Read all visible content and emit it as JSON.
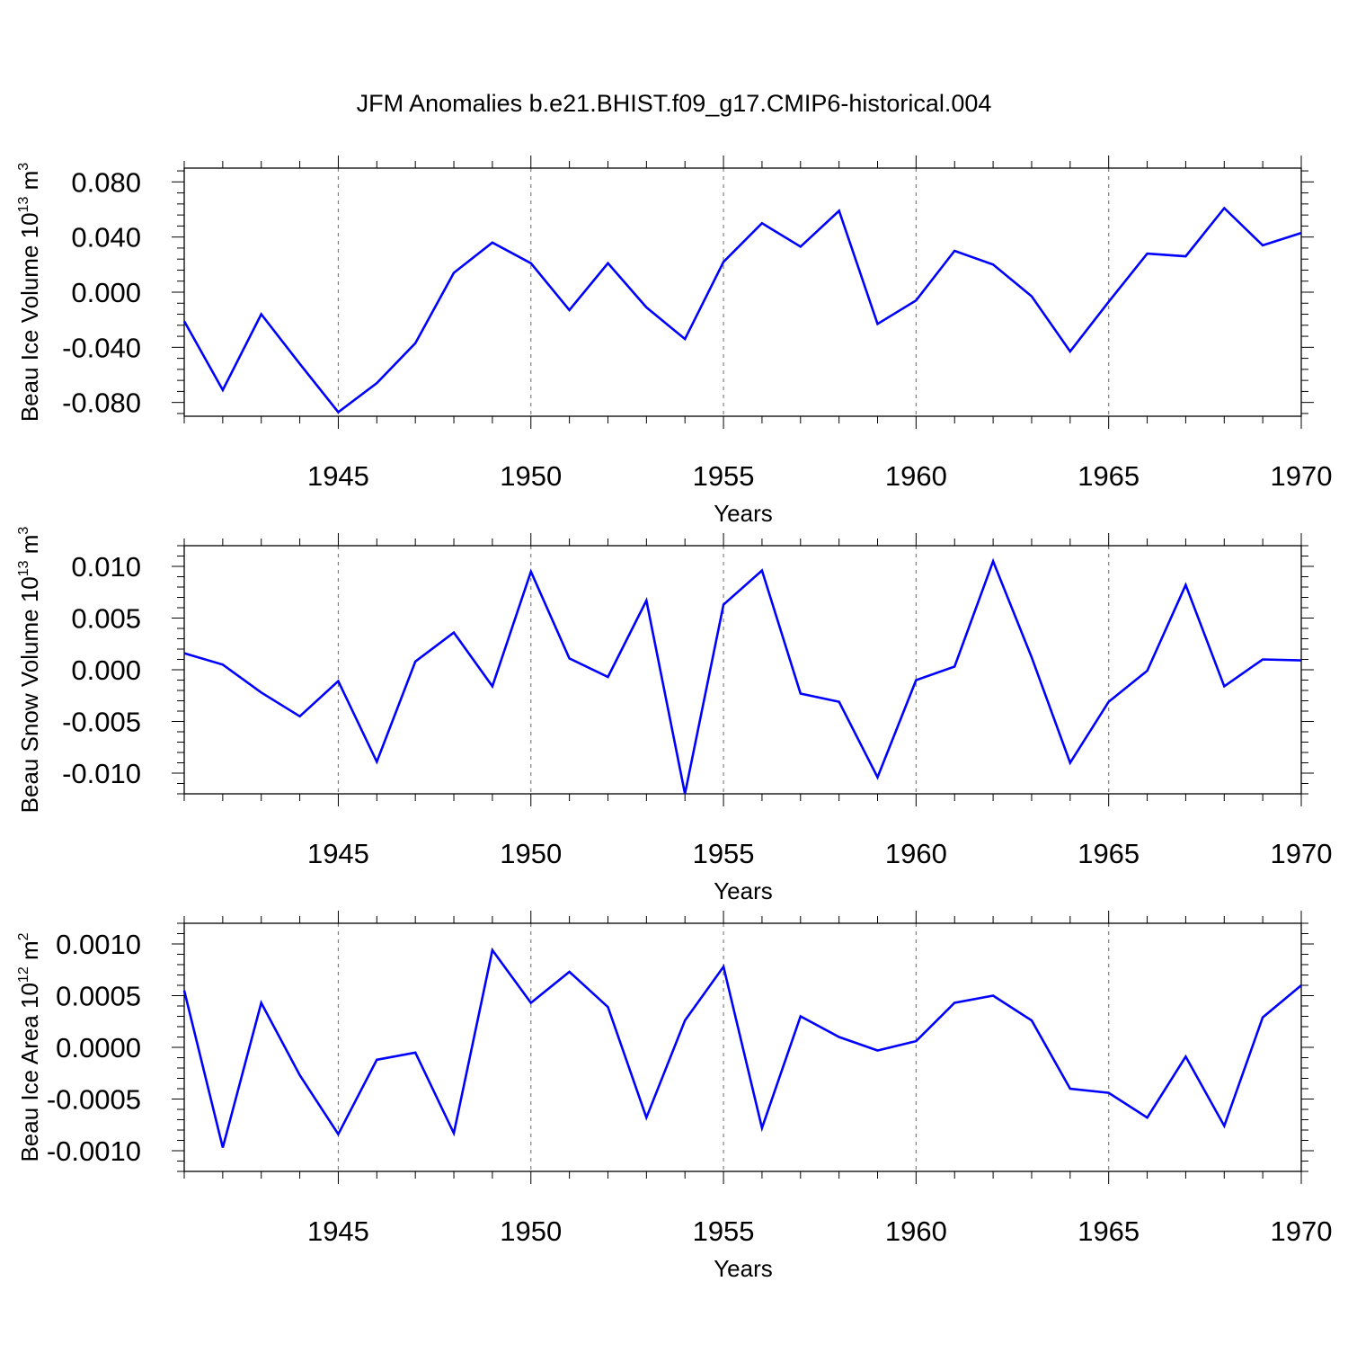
{
  "title": "JFM Anomalies b.e21.BHIST.f09_g17.CMIP6-historical.004",
  "colors": {
    "line": "#0000ff",
    "axis": "#000000",
    "grid": "#808080",
    "background": "#ffffff"
  },
  "chart_data": [
    {
      "type": "line",
      "xlabel": "Years",
      "ylabel": {
        "text": "Beau Ice Volume 10",
        "exponent": "13",
        "unit": " m",
        "unit_exponent": "3"
      },
      "xlim": [
        1941,
        1970
      ],
      "ylim": [
        -0.09,
        0.09
      ],
      "xticks": [
        1945,
        1950,
        1955,
        1960,
        1965,
        1970
      ],
      "yticks": [
        -0.08,
        -0.04,
        0.0,
        0.04,
        0.08
      ],
      "ytick_labels": [
        "-0.080",
        "-0.040",
        "0.000",
        "0.040",
        "0.080"
      ],
      "grid": "vertical dashed at major x ticks",
      "x": [
        1941,
        1942,
        1943,
        1944,
        1945,
        1946,
        1947,
        1948,
        1949,
        1950,
        1951,
        1952,
        1953,
        1954,
        1955,
        1956,
        1957,
        1958,
        1959,
        1960,
        1961,
        1962,
        1963,
        1964,
        1965,
        1966,
        1967,
        1968,
        1969,
        1970
      ],
      "values": [
        -0.021,
        -0.071,
        -0.016,
        -0.052,
        -0.087,
        -0.066,
        -0.037,
        0.014,
        0.036,
        0.021,
        -0.013,
        0.021,
        -0.011,
        -0.034,
        0.022,
        0.05,
        0.033,
        0.059,
        -0.023,
        -0.006,
        0.03,
        0.02,
        -0.003,
        -0.043,
        -0.007,
        0.028,
        0.026,
        0.061,
        0.034,
        0.043
      ]
    },
    {
      "type": "line",
      "xlabel": "Years",
      "ylabel": {
        "text": "Beau Snow Volume 10",
        "exponent": "13",
        "unit": " m",
        "unit_exponent": "3"
      },
      "xlim": [
        1941,
        1970
      ],
      "ylim": [
        -0.012,
        0.012
      ],
      "xticks": [
        1945,
        1950,
        1955,
        1960,
        1965,
        1970
      ],
      "yticks": [
        -0.01,
        -0.005,
        0.0,
        0.005,
        0.01
      ],
      "ytick_labels": [
        "-0.010",
        "-0.005",
        "0.000",
        "0.005",
        "0.010"
      ],
      "grid": "vertical dashed at major x ticks",
      "x": [
        1941,
        1942,
        1943,
        1944,
        1945,
        1946,
        1947,
        1948,
        1949,
        1950,
        1951,
        1952,
        1953,
        1954,
        1955,
        1956,
        1957,
        1958,
        1959,
        1960,
        1961,
        1962,
        1963,
        1964,
        1965,
        1966,
        1967,
        1968,
        1969,
        1970
      ],
      "values": [
        0.0016,
        0.0005,
        -0.0022,
        -0.0045,
        -0.0011,
        -0.0089,
        0.0008,
        0.0036,
        -0.0016,
        0.0095,
        0.0011,
        -0.0007,
        0.0067,
        -0.012,
        0.0063,
        0.0096,
        -0.0023,
        -0.0031,
        -0.0104,
        -0.001,
        0.0003,
        0.0105,
        0.0012,
        -0.009,
        -0.0031,
        -0.0001,
        0.0082,
        -0.0016,
        0.001,
        0.0009
      ]
    },
    {
      "type": "line",
      "xlabel": "Years",
      "ylabel": {
        "text": "Beau Ice Area 10",
        "exponent": "12",
        "unit": " m",
        "unit_exponent": "2"
      },
      "xlim": [
        1941,
        1970
      ],
      "ylim": [
        -0.0012,
        0.0012
      ],
      "xticks": [
        1945,
        1950,
        1955,
        1960,
        1965,
        1970
      ],
      "yticks": [
        -0.001,
        -0.0005,
        0.0,
        0.0005,
        0.001
      ],
      "ytick_labels": [
        "-0.0010",
        "-0.0005",
        "0.0000",
        "0.0005",
        "0.0010"
      ],
      "grid": "vertical dashed at major x ticks",
      "x": [
        1941,
        1942,
        1943,
        1944,
        1945,
        1946,
        1947,
        1948,
        1949,
        1950,
        1951,
        1952,
        1953,
        1954,
        1955,
        1956,
        1957,
        1958,
        1959,
        1960,
        1961,
        1962,
        1963,
        1964,
        1965,
        1966,
        1967,
        1968,
        1969,
        1970
      ],
      "values": [
        0.00055,
        -0.00097,
        0.00043,
        -0.00027,
        -0.00084,
        -0.00012,
        -5e-05,
        -0.00083,
        0.00094,
        0.00043,
        0.00073,
        0.00039,
        -0.00068,
        0.00026,
        0.00078,
        -0.00078,
        0.0003,
        0.0001,
        -3e-05,
        6e-05,
        0.00043,
        0.0005,
        0.00026,
        -0.0004,
        -0.00044,
        -0.00068,
        -9e-05,
        -0.00076,
        0.00029,
        0.0006
      ]
    }
  ]
}
